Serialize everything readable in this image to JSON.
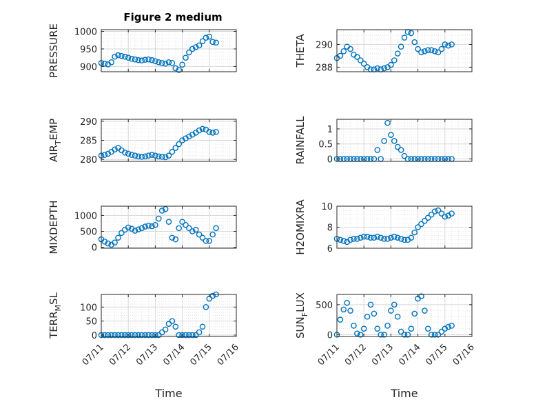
{
  "figure": {
    "title": "Figure 2 medium"
  },
  "colors": {
    "marker": "#0072BD",
    "axis": "#262626",
    "grid": "#d6d6d6",
    "minor_grid": "#e6e6e6"
  },
  "chart_data": [
    {
      "type": "scatter",
      "ylabel": "PRESSURE",
      "xlabel": "",
      "xlim": [
        "07/11",
        "07/16"
      ],
      "xticks": [
        "07/11",
        "07/12",
        "07/13",
        "07/14",
        "07/15",
        "07/16"
      ],
      "ylim": [
        885,
        1005
      ],
      "yticks": [
        "900",
        "950",
        "1000"
      ],
      "grid": true,
      "x": [
        "07/11 00:00",
        "07/11 03:00",
        "07/11 06:00",
        "07/11 09:00",
        "07/11 12:00",
        "07/11 15:00",
        "07/11 18:00",
        "07/11 21:00",
        "07/12 00:00",
        "07/12 03:00",
        "07/12 06:00",
        "07/12 09:00",
        "07/12 12:00",
        "07/12 15:00",
        "07/12 18:00",
        "07/12 21:00",
        "07/13 00:00",
        "07/13 03:00",
        "07/13 06:00",
        "07/13 09:00",
        "07/13 12:00",
        "07/13 15:00",
        "07/13 18:00",
        "07/13 21:00",
        "07/14 00:00",
        "07/14 03:00",
        "07/14 06:00",
        "07/14 09:00",
        "07/14 12:00",
        "07/14 15:00",
        "07/14 18:00",
        "07/14 21:00",
        "07/15 00:00",
        "07/15 03:00",
        "07/15 06:00"
      ],
      "y": [
        910,
        908,
        906,
        912,
        928,
        932,
        930,
        928,
        925,
        922,
        920,
        918,
        917,
        919,
        920,
        918,
        915,
        912,
        910,
        908,
        912,
        910,
        895,
        890,
        905,
        925,
        940,
        950,
        955,
        960,
        972,
        982,
        985,
        970,
        968
      ]
    },
    {
      "type": "scatter",
      "ylabel": "THETA",
      "xlabel": "",
      "xlim": [
        "07/11",
        "07/16"
      ],
      "xticks": [
        "07/11",
        "07/12",
        "07/13",
        "07/14",
        "07/15",
        "07/16"
      ],
      "ylim": [
        287.6,
        291.3
      ],
      "yticks": [
        "288",
        "290"
      ],
      "grid": true,
      "x": [
        "07/11 00:00",
        "07/11 03:00",
        "07/11 06:00",
        "07/11 09:00",
        "07/11 12:00",
        "07/11 15:00",
        "07/11 18:00",
        "07/11 21:00",
        "07/12 00:00",
        "07/12 03:00",
        "07/12 06:00",
        "07/12 09:00",
        "07/12 12:00",
        "07/12 15:00",
        "07/12 18:00",
        "07/12 21:00",
        "07/13 00:00",
        "07/13 03:00",
        "07/13 06:00",
        "07/13 09:00",
        "07/13 12:00",
        "07/13 15:00",
        "07/13 18:00",
        "07/13 21:00",
        "07/14 00:00",
        "07/14 03:00",
        "07/14 06:00",
        "07/14 09:00",
        "07/14 12:00",
        "07/14 15:00",
        "07/14 18:00",
        "07/14 21:00",
        "07/15 00:00",
        "07/15 03:00",
        "07/15 06:00"
      ],
      "y": [
        288.8,
        289.0,
        289.4,
        289.8,
        289.6,
        289.1,
        288.9,
        288.6,
        288.3,
        288.0,
        287.8,
        287.8,
        287.9,
        287.8,
        287.9,
        288.0,
        288.2,
        288.6,
        289.2,
        289.8,
        290.6,
        291.1,
        291.0,
        290.2,
        289.6,
        289.3,
        289.4,
        289.5,
        289.5,
        289.4,
        289.3,
        289.6,
        290.0,
        289.9,
        290.0
      ]
    },
    {
      "type": "scatter",
      "ylabel": "AIR_TEMP",
      "xlabel": "",
      "xlim": [
        "07/11",
        "07/16"
      ],
      "xticks": [
        "07/11",
        "07/12",
        "07/13",
        "07/14",
        "07/15",
        "07/16"
      ],
      "ylim": [
        279.5,
        290.5
      ],
      "yticks": [
        "280",
        "285",
        "290"
      ],
      "grid": true,
      "x": [
        "07/11 00:00",
        "07/11 03:00",
        "07/11 06:00",
        "07/11 09:00",
        "07/11 12:00",
        "07/11 15:00",
        "07/11 18:00",
        "07/11 21:00",
        "07/12 00:00",
        "07/12 03:00",
        "07/12 06:00",
        "07/12 09:00",
        "07/12 12:00",
        "07/12 15:00",
        "07/12 18:00",
        "07/12 21:00",
        "07/13 00:00",
        "07/13 03:00",
        "07/13 06:00",
        "07/13 09:00",
        "07/13 12:00",
        "07/13 15:00",
        "07/13 18:00",
        "07/13 21:00",
        "07/14 00:00",
        "07/14 03:00",
        "07/14 06:00",
        "07/14 09:00",
        "07/14 12:00",
        "07/14 15:00",
        "07/14 18:00",
        "07/14 21:00",
        "07/15 00:00",
        "07/15 03:00",
        "07/15 06:00"
      ],
      "y": [
        281.0,
        281.2,
        281.5,
        282.0,
        282.6,
        283.0,
        282.4,
        281.8,
        281.5,
        281.2,
        281.0,
        280.8,
        280.7,
        280.8,
        281.0,
        281.2,
        281.0,
        280.8,
        280.7,
        280.6,
        281.0,
        282.0,
        283.0,
        284.0,
        285.0,
        285.5,
        286.0,
        286.5,
        287.0,
        287.6,
        288.0,
        287.8,
        287.2,
        287.0,
        287.2
      ]
    },
    {
      "type": "scatter",
      "ylabel": "RAINFALL",
      "xlabel": "",
      "xlim": [
        "07/11",
        "07/16"
      ],
      "xticks": [
        "07/11",
        "07/12",
        "07/13",
        "07/14",
        "07/15",
        "07/16"
      ],
      "ylim": [
        -0.08,
        1.32
      ],
      "yticks": [
        "0",
        "0.5",
        "1"
      ],
      "grid": true,
      "x": [
        "07/11 00:00",
        "07/11 03:00",
        "07/11 06:00",
        "07/11 09:00",
        "07/11 12:00",
        "07/11 15:00",
        "07/11 18:00",
        "07/11 21:00",
        "07/12 00:00",
        "07/12 03:00",
        "07/12 06:00",
        "07/12 09:00",
        "07/12 12:00",
        "07/12 15:00",
        "07/12 18:00",
        "07/12 21:00",
        "07/13 00:00",
        "07/13 03:00",
        "07/13 06:00",
        "07/13 09:00",
        "07/13 12:00",
        "07/13 15:00",
        "07/13 18:00",
        "07/13 21:00",
        "07/14 00:00",
        "07/14 03:00",
        "07/14 06:00",
        "07/14 09:00",
        "07/14 12:00",
        "07/14 15:00",
        "07/14 18:00",
        "07/14 21:00",
        "07/15 00:00",
        "07/15 03:00",
        "07/15 06:00"
      ],
      "y": [
        0,
        0,
        0,
        0,
        0,
        0,
        0,
        0,
        0,
        0,
        0,
        0,
        0.3,
        0,
        0.6,
        1.2,
        0.8,
        0.6,
        0.4,
        0.3,
        0.1,
        0,
        0,
        0,
        0,
        0,
        0,
        0,
        0,
        0,
        0,
        0,
        0,
        0,
        0
      ]
    },
    {
      "type": "scatter",
      "ylabel": "MIXDEPTH",
      "xlabel": "",
      "xlim": [
        "07/11",
        "07/16"
      ],
      "xticks": [
        "07/11",
        "07/12",
        "07/13",
        "07/14",
        "07/15",
        "07/16"
      ],
      "ylim": [
        -30,
        1290
      ],
      "yticks": [
        "0",
        "500",
        "1000"
      ],
      "grid": true,
      "x": [
        "07/11 00:00",
        "07/11 03:00",
        "07/11 06:00",
        "07/11 09:00",
        "07/11 12:00",
        "07/11 15:00",
        "07/11 18:00",
        "07/11 21:00",
        "07/12 00:00",
        "07/12 03:00",
        "07/12 06:00",
        "07/12 09:00",
        "07/12 12:00",
        "07/12 15:00",
        "07/12 18:00",
        "07/12 21:00",
        "07/13 00:00",
        "07/13 03:00",
        "07/13 06:00",
        "07/13 09:00",
        "07/13 12:00",
        "07/13 15:00",
        "07/13 18:00",
        "07/13 21:00",
        "07/14 00:00",
        "07/14 03:00",
        "07/14 06:00",
        "07/14 09:00",
        "07/14 12:00",
        "07/14 15:00",
        "07/14 18:00",
        "07/14 21:00",
        "07/15 00:00",
        "07/15 03:00",
        "07/15 06:00"
      ],
      "y": [
        250,
        180,
        120,
        80,
        150,
        300,
        450,
        550,
        620,
        580,
        520,
        560,
        600,
        650,
        680,
        660,
        700,
        900,
        1150,
        1200,
        800,
        300,
        250,
        600,
        800,
        700,
        600,
        500,
        550,
        400,
        300,
        200,
        200,
        400,
        600
      ]
    },
    {
      "type": "scatter",
      "ylabel": "H2OMIXRA",
      "xlabel": "",
      "xlim": [
        "07/11",
        "07/16"
      ],
      "xticks": [
        "07/11",
        "07/12",
        "07/13",
        "07/14",
        "07/15",
        "07/16"
      ],
      "ylim": [
        6,
        10
      ],
      "yticks": [
        "6",
        "8",
        "10"
      ],
      "grid": true,
      "x": [
        "07/11 00:00",
        "07/11 03:00",
        "07/11 06:00",
        "07/11 09:00",
        "07/11 12:00",
        "07/11 15:00",
        "07/11 18:00",
        "07/11 21:00",
        "07/12 00:00",
        "07/12 03:00",
        "07/12 06:00",
        "07/12 09:00",
        "07/12 12:00",
        "07/12 15:00",
        "07/12 18:00",
        "07/12 21:00",
        "07/13 00:00",
        "07/13 03:00",
        "07/13 06:00",
        "07/13 09:00",
        "07/13 12:00",
        "07/13 15:00",
        "07/13 18:00",
        "07/13 21:00",
        "07/14 00:00",
        "07/14 03:00",
        "07/14 06:00",
        "07/14 09:00",
        "07/14 12:00",
        "07/14 15:00",
        "07/14 18:00",
        "07/14 21:00",
        "07/15 00:00",
        "07/15 03:00",
        "07/15 06:00"
      ],
      "y": [
        6.9,
        6.8,
        6.7,
        6.6,
        6.8,
        6.9,
        6.9,
        7.0,
        7.1,
        7.1,
        7.0,
        7.0,
        7.1,
        7.0,
        6.9,
        6.9,
        7.0,
        7.1,
        7.0,
        6.9,
        6.8,
        6.8,
        7.0,
        7.5,
        8.0,
        8.3,
        8.6,
        8.9,
        9.2,
        9.5,
        9.6,
        9.3,
        9.0,
        9.1,
        9.3
      ]
    },
    {
      "type": "scatter",
      "ylabel": "TERR_MSL",
      "xlabel": "Time",
      "xlim": [
        "07/11",
        "07/16"
      ],
      "xticks": [
        "07/11",
        "07/12",
        "07/13",
        "07/14",
        "07/15",
        "07/16"
      ],
      "ylim": [
        -5,
        145
      ],
      "yticks": [
        "0",
        "50",
        "100"
      ],
      "grid": true,
      "x": [
        "07/11 00:00",
        "07/11 03:00",
        "07/11 06:00",
        "07/11 09:00",
        "07/11 12:00",
        "07/11 15:00",
        "07/11 18:00",
        "07/11 21:00",
        "07/12 00:00",
        "07/12 03:00",
        "07/12 06:00",
        "07/12 09:00",
        "07/12 12:00",
        "07/12 15:00",
        "07/12 18:00",
        "07/12 21:00",
        "07/13 00:00",
        "07/13 03:00",
        "07/13 06:00",
        "07/13 09:00",
        "07/13 12:00",
        "07/13 15:00",
        "07/13 18:00",
        "07/13 21:00",
        "07/14 00:00",
        "07/14 03:00",
        "07/14 06:00",
        "07/14 09:00",
        "07/14 12:00",
        "07/14 15:00",
        "07/14 18:00",
        "07/14 21:00",
        "07/15 00:00",
        "07/15 03:00",
        "07/15 06:00"
      ],
      "y": [
        0,
        0,
        0,
        0,
        0,
        0,
        0,
        0,
        0,
        0,
        0,
        0,
        0,
        0,
        0,
        0,
        0,
        0,
        10,
        20,
        40,
        50,
        30,
        0,
        0,
        0,
        0,
        0,
        0,
        10,
        30,
        100,
        130,
        140,
        145
      ]
    },
    {
      "type": "scatter",
      "ylabel": "SUN_FLUX",
      "xlabel": "Time",
      "xlim": [
        "07/11",
        "07/16"
      ],
      "xticks": [
        "07/11",
        "07/12",
        "07/13",
        "07/14",
        "07/15",
        "07/16"
      ],
      "ylim": [
        -30,
        670
      ],
      "yticks": [
        "0",
        "500"
      ],
      "grid": true,
      "x": [
        "07/11 00:00",
        "07/11 03:00",
        "07/11 06:00",
        "07/11 09:00",
        "07/11 12:00",
        "07/11 15:00",
        "07/11 18:00",
        "07/11 21:00",
        "07/12 00:00",
        "07/12 03:00",
        "07/12 06:00",
        "07/12 09:00",
        "07/12 12:00",
        "07/12 15:00",
        "07/12 18:00",
        "07/12 21:00",
        "07/13 00:00",
        "07/13 03:00",
        "07/13 06:00",
        "07/13 09:00",
        "07/13 12:00",
        "07/13 15:00",
        "07/13 18:00",
        "07/13 21:00",
        "07/14 00:00",
        "07/14 03:00",
        "07/14 06:00",
        "07/14 09:00",
        "07/14 12:00",
        "07/14 15:00",
        "07/14 18:00",
        "07/14 21:00",
        "07/15 00:00",
        "07/15 03:00",
        "07/15 06:00"
      ],
      "y": [
        0,
        250,
        420,
        530,
        400,
        150,
        20,
        0,
        100,
        300,
        500,
        350,
        100,
        0,
        0,
        150,
        400,
        500,
        300,
        50,
        0,
        0,
        100,
        350,
        600,
        640,
        400,
        100,
        0,
        0,
        0,
        50,
        100,
        130,
        150
      ]
    }
  ]
}
